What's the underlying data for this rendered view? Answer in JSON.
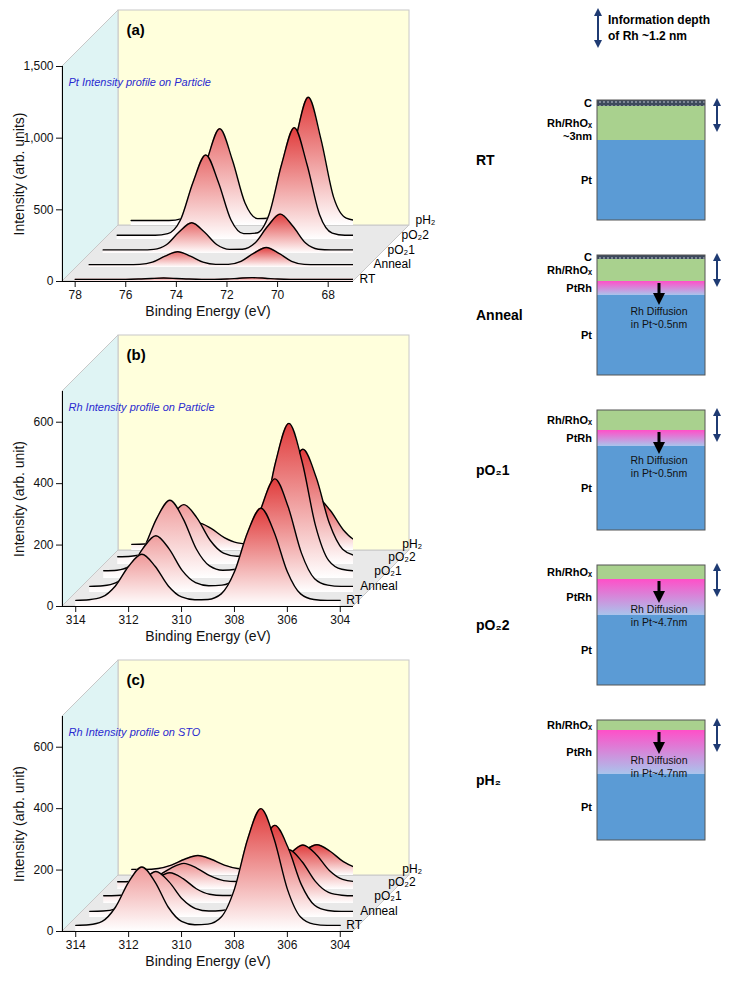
{
  "chart_data": [
    {
      "type": "area",
      "title": "(a)",
      "annotation": "Pt Intensity profile on Particle",
      "xlabel": "Binding Energy (eV)",
      "ylabel": "Intensity (arb. units)",
      "x": [
        78,
        77.5,
        77,
        76.5,
        76,
        75.5,
        75,
        74.5,
        74,
        73.5,
        73,
        72.5,
        72,
        71.5,
        71,
        70.5,
        70,
        69.5,
        69,
        68.5,
        68,
        67.5,
        67
      ],
      "series": [
        {
          "name": "RT",
          "color": "#e03a3a",
          "values": [
            15,
            15,
            15,
            15,
            15,
            17,
            21,
            24,
            21,
            17,
            15,
            15,
            17,
            23,
            27,
            23,
            17,
            15,
            15,
            15,
            15,
            15,
            15
          ]
        },
        {
          "name": "Anneal",
          "color": "#e03a3a",
          "values": [
            20,
            20,
            20,
            20,
            22,
            37,
            79,
            110,
            79,
            37,
            22,
            22,
            43,
            99,
            140,
            99,
            43,
            22,
            20,
            20,
            20,
            20,
            20
          ]
        },
        {
          "name": "pO₂1",
          "color": "#e03a3a",
          "values": [
            25,
            25,
            25,
            25,
            29,
            61,
            150,
            215,
            150,
            61,
            29,
            30,
            73,
            190,
            275,
            190,
            73,
            30,
            25,
            25,
            25,
            25,
            25
          ]
        },
        {
          "name": "pO₂2",
          "color": "#e03a3a",
          "values": [
            30,
            30,
            30,
            30,
            41,
            136,
            400,
            590,
            400,
            136,
            41,
            45,
            173,
            525,
            780,
            525,
            173,
            45,
            30,
            30,
            30,
            30,
            30
          ]
        },
        {
          "name": "pH₂",
          "color": "#e03a3a",
          "values": [
            35,
            35,
            35,
            35,
            48,
            157,
            457,
            675,
            457,
            157,
            48,
            52,
            198,
            603,
            895,
            603,
            198,
            52,
            35,
            35,
            35,
            35,
            35
          ]
        }
      ],
      "xlim": [
        78.5,
        67
      ],
      "xticks": [
        78,
        76,
        74,
        72,
        70,
        68
      ],
      "ylim": [
        0,
        1500
      ],
      "yticks": [
        0,
        500,
        1000,
        1500
      ],
      "grid": false
    },
    {
      "type": "area",
      "title": "(b)",
      "annotation": "Rh Intensity profile on Particle",
      "xlabel": "Binding Energy (eV)",
      "ylabel": "Intensity (arb. unit)",
      "x": [
        314,
        313.5,
        313,
        312.5,
        312,
        311.5,
        311,
        310.5,
        310,
        309.5,
        309,
        308.5,
        308,
        307.5,
        307,
        306.5,
        306,
        305.5,
        305,
        304.5,
        304
      ],
      "series": [
        {
          "name": "RT",
          "color": "#e03a3a",
          "values": [
            20,
            22,
            31,
            67,
            131,
            170,
            131,
            67,
            31,
            22,
            23,
            41,
            113,
            242,
            320,
            242,
            113,
            41,
            23,
            20,
            20
          ]
        },
        {
          "name": "Anneal",
          "color": "#e03a3a",
          "values": [
            20,
            22,
            32,
            71,
            142,
            185,
            142,
            71,
            32,
            22,
            24,
            45,
            129,
            279,
            370,
            279,
            129,
            45,
            24,
            20,
            20
          ]
        },
        {
          "name": "pO₂1",
          "color": "#e03a3a",
          "values": [
            25,
            27,
            41,
            96,
            195,
            255,
            195,
            96,
            41,
            27,
            30,
            59,
            174,
            380,
            505,
            380,
            174,
            59,
            30,
            25,
            25
          ]
        },
        {
          "name": "pO₂2",
          "color": "#e03a3a",
          "values": [
            25,
            27,
            37,
            78,
            151,
            195,
            151,
            78,
            37,
            27,
            29,
            50,
            134,
            284,
            375,
            284,
            134,
            50,
            29,
            25,
            25
          ]
        },
        {
          "name": "pH₂",
          "color": "#e03a3a",
          "values": [
            20,
            21,
            25,
            42,
            72,
            90,
            72,
            42,
            25,
            21,
            22,
            31,
            67,
            131,
            170,
            131,
            67,
            31,
            22,
            20,
            20
          ]
        }
      ],
      "xlim": [
        314.5,
        303.5
      ],
      "xticks": [
        314,
        312,
        310,
        308,
        306,
        304
      ],
      "ylim": [
        0,
        700
      ],
      "yticks": [
        0,
        200,
        400,
        600
      ],
      "grid": false
    },
    {
      "type": "area",
      "title": "(c)",
      "annotation": "Rh Intensity profile on STO",
      "xlabel": "Binding Energy (eV)",
      "ylabel": "Intensity (arb. unit)",
      "x": [
        314,
        313.5,
        313,
        312.5,
        312,
        311.5,
        311,
        310.5,
        310,
        309.5,
        309,
        308.5,
        308,
        307.5,
        307,
        306.5,
        306,
        305.5,
        305,
        304.5,
        304
      ],
      "series": [
        {
          "name": "RT",
          "color": "#e03a3a",
          "values": [
            20,
            22,
            33,
            79,
            161,
            210,
            161,
            79,
            33,
            22,
            24,
            47,
            138,
            301,
            400,
            301,
            138,
            47,
            24,
            20,
            20
          ]
        },
        {
          "name": "Anneal",
          "color": "#e03a3a",
          "values": [
            20,
            21,
            29,
            60,
            116,
            150,
            116,
            60,
            29,
            21,
            23,
            40,
            107,
            227,
            300,
            227,
            107,
            40,
            23,
            20,
            20
          ]
        },
        {
          "name": "pO₂1",
          "color": "#e03a3a",
          "values": [
            25,
            26,
            30,
            48,
            81,
            100,
            81,
            48,
            30,
            26,
            27,
            36,
            72,
            136,
            175,
            136,
            72,
            36,
            27,
            25,
            25
          ]
        },
        {
          "name": "pO₂2",
          "color": "#e03a3a",
          "values": [
            25,
            26,
            29,
            44,
            69,
            85,
            69,
            44,
            29,
            26,
            26,
            33,
            62,
            114,
            145,
            114,
            62,
            33,
            26,
            25,
            25
          ]
        },
        {
          "name": "pH₂",
          "color": "#e03a3a",
          "values": [
            20,
            20,
            23,
            34,
            53,
            65,
            53,
            34,
            23,
            20,
            21,
            26,
            45,
            79,
            100,
            79,
            45,
            26,
            21,
            20,
            20
          ]
        }
      ],
      "xlim": [
        314.5,
        303.5
      ],
      "xticks": [
        314,
        312,
        310,
        308,
        306,
        304
      ],
      "ylim": [
        0,
        700
      ],
      "yticks": [
        0,
        200,
        400,
        600
      ],
      "grid": false
    }
  ],
  "diagram": {
    "header": "Information depth of Rh ~1.2 nm",
    "stages": [
      {
        "label": "RT",
        "layers": [
          "C",
          "Rh/RhOₓ",
          "Pt"
        ],
        "note": "~3nm"
      },
      {
        "label": "Anneal",
        "layers": [
          "C",
          "Rh/RhOₓ",
          "PtRh",
          "Pt"
        ],
        "diffusion": "Rh Diffusion in Pt~0.5nm"
      },
      {
        "label": "pO₂1",
        "layers": [
          "Rh/RhOₓ",
          "PtRh",
          "Pt"
        ],
        "diffusion": "Rh Diffusion in Pt~0.5nm"
      },
      {
        "label": "pO₂2",
        "layers": [
          "Rh/RhOₓ",
          "PtRh",
          "Pt"
        ],
        "diffusion": "Rh Diffusion in Pt~4.7nm"
      },
      {
        "label": "pH₂",
        "layers": [
          "Rh/RhOₓ",
          "PtRh",
          "Pt"
        ],
        "diffusion": "Rh Diffusion in Pt~4.7nm"
      }
    ]
  }
}
